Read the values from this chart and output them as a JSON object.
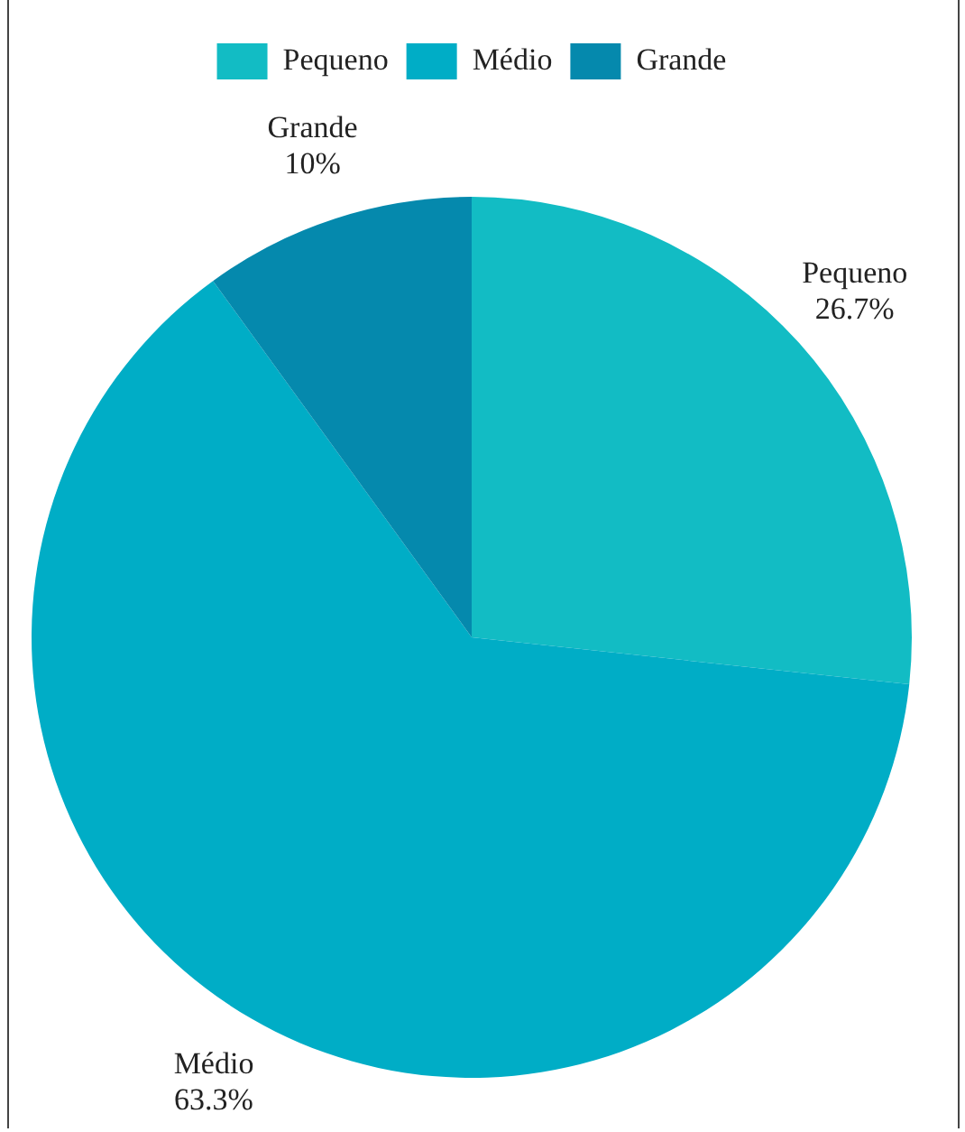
{
  "chart_data": {
    "type": "pie",
    "categories": [
      "Pequeno",
      "Médio",
      "Grande"
    ],
    "values": [
      26.7,
      63.3,
      10
    ],
    "value_labels": [
      "26.7%",
      "63.3%",
      "10%"
    ],
    "colors": [
      "#12bcc4",
      "#00adc6",
      "#0589ad"
    ],
    "data_labels": true,
    "legend": "top"
  }
}
